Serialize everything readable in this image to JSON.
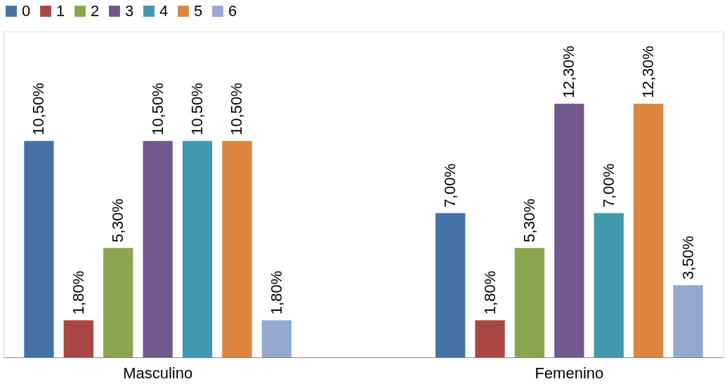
{
  "chart_data": {
    "type": "bar",
    "categories": [
      "Masculino",
      "Femenino"
    ],
    "series": [
      {
        "name": "0",
        "color": "#4573a7",
        "values": [
          10.5,
          7.0
        ],
        "value_labels": [
          "10,50%",
          "7,00%"
        ]
      },
      {
        "name": "1",
        "color": "#aa4643",
        "values": [
          1.8,
          1.8
        ],
        "value_labels": [
          "1,80%",
          "1,80%"
        ]
      },
      {
        "name": "2",
        "color": "#89a54e",
        "values": [
          5.3,
          5.3
        ],
        "value_labels": [
          "5,30%",
          "5,30%"
        ]
      },
      {
        "name": "3",
        "color": "#71588f",
        "values": [
          10.5,
          12.3
        ],
        "value_labels": [
          "10,50%",
          "12,30%"
        ]
      },
      {
        "name": "4",
        "color": "#4198af",
        "values": [
          10.5,
          7.0
        ],
        "value_labels": [
          "10,50%",
          "7,00%"
        ]
      },
      {
        "name": "5",
        "color": "#db843d",
        "values": [
          10.5,
          12.3
        ],
        "value_labels": [
          "10,50%",
          "12,30%"
        ]
      },
      {
        "name": "6",
        "color": "#93a9cf",
        "values": [
          1.8,
          3.5
        ],
        "value_labels": [
          "1,80%",
          "3,50%"
        ]
      }
    ],
    "ylim": [
      0,
      15.8
    ],
    "legend": "top",
    "grid": false
  }
}
